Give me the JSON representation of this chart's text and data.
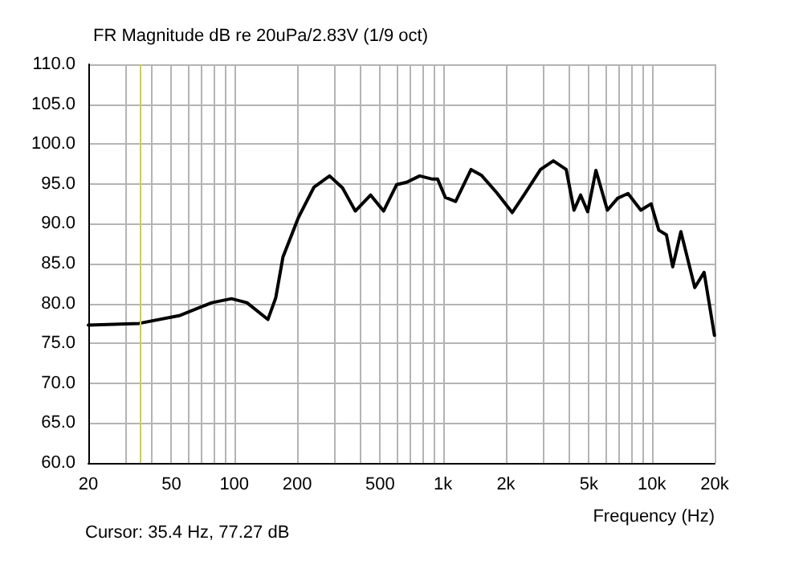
{
  "chart_data": {
    "type": "line",
    "title": "FR Magnitude dB re 20uPa/2.83V (1/9 oct)",
    "xlabel": "Frequency (Hz)",
    "annotations": [
      "Cursor: 35.4 Hz, 77.27 dB"
    ],
    "log": "x",
    "grid": true,
    "marker": "none",
    "line_style": "solid",
    "xlim": [
      20,
      20000
    ],
    "xticks": [
      {
        "value": 20,
        "label": "20"
      },
      {
        "value": 30,
        "label": null
      },
      {
        "value": 40,
        "label": null
      },
      {
        "value": 50,
        "label": "50"
      },
      {
        "value": 60,
        "label": null
      },
      {
        "value": 70,
        "label": null
      },
      {
        "value": 80,
        "label": null
      },
      {
        "value": 90,
        "label": null
      },
      {
        "value": 100,
        "label": "100"
      },
      {
        "value": 200,
        "label": "200"
      },
      {
        "value": 300,
        "label": null
      },
      {
        "value": 400,
        "label": null
      },
      {
        "value": 500,
        "label": "500"
      },
      {
        "value": 600,
        "label": null
      },
      {
        "value": 700,
        "label": null
      },
      {
        "value": 800,
        "label": null
      },
      {
        "value": 900,
        "label": null
      },
      {
        "value": 1000,
        "label": "1k"
      },
      {
        "value": 2000,
        "label": "2k"
      },
      {
        "value": 3000,
        "label": null
      },
      {
        "value": 4000,
        "label": null
      },
      {
        "value": 5000,
        "label": "5k"
      },
      {
        "value": 6000,
        "label": null
      },
      {
        "value": 7000,
        "label": null
      },
      {
        "value": 8000,
        "label": null
      },
      {
        "value": 9000,
        "label": null
      },
      {
        "value": 10000,
        "label": "10k"
      },
      {
        "value": 20000,
        "label": "20k"
      }
    ],
    "ylim": [
      60,
      110
    ],
    "yticks": [
      {
        "value": 60,
        "label": "60.0"
      },
      {
        "value": 65,
        "label": "65.0"
      },
      {
        "value": 70,
        "label": "70.0"
      },
      {
        "value": 75,
        "label": "75.0"
      },
      {
        "value": 80,
        "label": "80.0"
      },
      {
        "value": 85,
        "label": "85.0"
      },
      {
        "value": 90,
        "label": "90.0"
      },
      {
        "value": 95,
        "label": "95.0"
      },
      {
        "value": 100,
        "label": "100.0"
      },
      {
        "value": 105,
        "label": "105.0"
      },
      {
        "value": 110,
        "label": "110.0"
      }
    ],
    "ref_lines": [
      {
        "axis": "x",
        "value": 35.4,
        "label": null,
        "color": "#d8cc40",
        "line_style": "solid"
      }
    ],
    "series": [
      {
        "color": "#000000",
        "x": [
          20,
          35,
          55,
          78,
          97,
          115,
          145,
          158,
          171,
          203,
          241,
          286,
          330,
          380,
          450,
          519,
          599,
          670,
          773,
          889,
          942,
          1026,
          1149,
          1362,
          1525,
          1808,
          2145,
          2470,
          2930,
          3375,
          3890,
          4240,
          4560,
          4930,
          5400,
          6125,
          6860,
          7690,
          8860,
          9920,
          10800,
          11750,
          12590,
          13780,
          16060,
          17800,
          19950
        ],
        "values": [
          77.3,
          77.5,
          78.5,
          80.1,
          80.6,
          80.1,
          78.0,
          80.7,
          85.8,
          90.8,
          94.6,
          96.0,
          94.5,
          91.6,
          93.6,
          91.6,
          94.9,
          95.2,
          96.0,
          95.6,
          95.6,
          93.3,
          92.8,
          96.8,
          96.1,
          93.9,
          91.4,
          93.8,
          96.8,
          97.9,
          96.8,
          91.7,
          93.6,
          91.5,
          96.7,
          91.7,
          93.2,
          93.8,
          91.7,
          92.5,
          89.2,
          88.6,
          84.6,
          89.0,
          82.0,
          83.9,
          76.0
        ]
      }
    ]
  }
}
